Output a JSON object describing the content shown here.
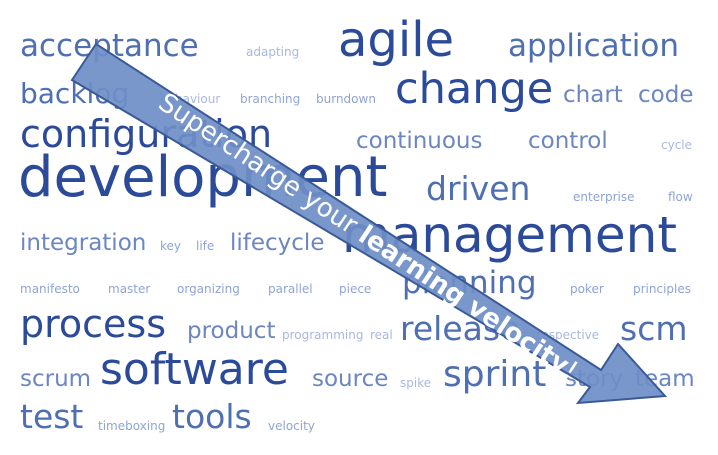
{
  "cloud_words": {
    "acceptance": "acceptance",
    "adapting": "adapting",
    "agile": "agile",
    "application": "application",
    "backlog": "backlog",
    "behaviour": "behaviour",
    "branching": "branching",
    "burndown": "burndown",
    "change": "change",
    "chart": "chart",
    "code": "code",
    "configuration": "configuration",
    "continuous": "continuous",
    "control": "control",
    "cycle": "cycle",
    "development": "development",
    "driven": "driven",
    "enterprise": "enterprise",
    "flow": "flow",
    "management": "management",
    "integration": "integration",
    "key": "key",
    "life": "life",
    "lifecycle": "lifecycle",
    "manifesto": "manifesto",
    "master": "master",
    "organizing": "organizing",
    "parallel": "parallel",
    "piece": "piece",
    "planning": "planning",
    "poker": "poker",
    "principles": "principles",
    "process": "process",
    "product": "product",
    "programming": "programming",
    "real": "real",
    "release": "release",
    "retrospective": "retrospective",
    "scm": "scm",
    "software": "software",
    "source": "source",
    "spike": "spike",
    "sprint": "sprint",
    "story": "story",
    "team": "team",
    "scrum": "scrum",
    "test": "test",
    "timeboxing": "timeboxing",
    "tools": "tools",
    "velocity": "velocity"
  },
  "arrow": {
    "text_part1": "Supercharge your ",
    "text_bold": "learning velocity",
    "text_part2": "!",
    "fill_color": "#6e8ec7",
    "stroke_color": "#3a5a97"
  },
  "colors": {
    "dark_blue": "#2b4a9a",
    "medium_blue": "#4f6fb3",
    "light_blue": "#8fa4d4"
  }
}
